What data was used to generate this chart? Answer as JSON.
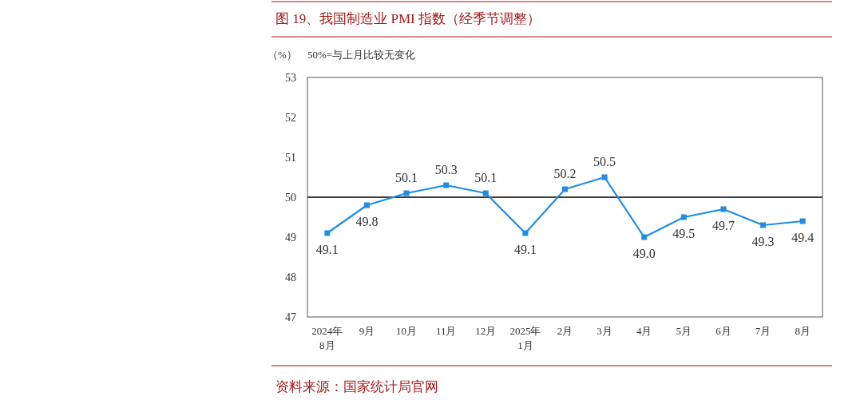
{
  "chart_data": {
    "type": "line",
    "title": "图 19、我国制造业 PMI 指数（经季节调整）",
    "ylabel": "（%）",
    "annotations": [
      "50%=与上月比较无变化",
      "资料来源：国家统计局官网"
    ],
    "categories": [
      "2024年\n8月",
      "9月",
      "10月",
      "11月",
      "12月",
      "2025年\n1月",
      "2月",
      "3月",
      "4月",
      "5月",
      "6月",
      "7月",
      "8月"
    ],
    "series": [
      {
        "color": "#1f8ce6",
        "values": [
          49.1,
          49.8,
          50.1,
          50.3,
          50.1,
          49.1,
          50.2,
          50.5,
          49.0,
          49.5,
          49.7,
          49.3,
          49.4
        ],
        "value_labels": [
          "49.1",
          "49.8",
          "50.1",
          "50.3",
          "50.1",
          "49.1",
          "50.2",
          "50.5",
          "49.0",
          "49.5",
          "49.7",
          "49.3",
          "49.4"
        ]
      }
    ],
    "ylim": [
      47,
      53
    ],
    "yticks": [
      47,
      48,
      49,
      50,
      51,
      52,
      53
    ],
    "ref_lines": [
      {
        "axis": "y",
        "value": 50,
        "color": "#000000"
      }
    ],
    "marker": "square",
    "line_style": "solid",
    "grid": false
  }
}
